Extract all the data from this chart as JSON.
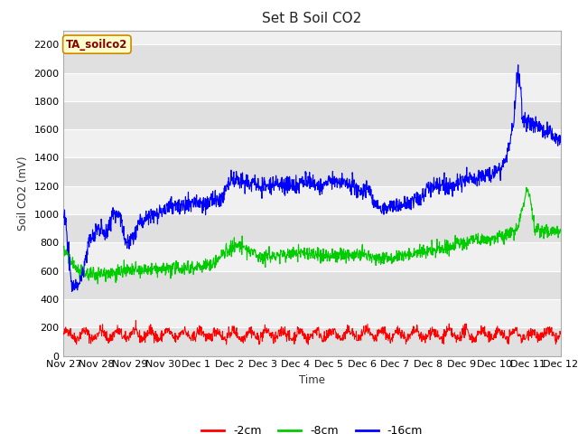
{
  "title": "Set B Soil CO2",
  "ylabel": "Soil CO2 (mV)",
  "xlabel": "Time",
  "ylim": [
    0,
    2300
  ],
  "yticks": [
    0,
    200,
    400,
    600,
    800,
    1000,
    1200,
    1400,
    1600,
    1800,
    2000,
    2200
  ],
  "xtick_labels": [
    "Nov 27",
    "Nov 28",
    "Nov 29",
    "Nov 30",
    "Dec 1",
    "Dec 2",
    "Dec 3",
    "Dec 4",
    "Dec 5",
    "Dec 6",
    "Dec 7",
    "Dec 8",
    "Dec 9",
    "Dec 10",
    "Dec 11",
    "Dec 12"
  ],
  "legend_labels": [
    "-2cm",
    "-8cm",
    "-16cm"
  ],
  "line_colors": [
    "#ff0000",
    "#00cc00",
    "#0000ff"
  ],
  "fig_bg": "#ffffff",
  "plot_bg_light": "#f0f0f0",
  "plot_bg_dark": "#e0e0e0",
  "grid_color": "#ffffff",
  "tag_label": "TA_soilco2",
  "tag_bg": "#ffffcc",
  "tag_border": "#cc8800",
  "tag_text_color": "#880000"
}
